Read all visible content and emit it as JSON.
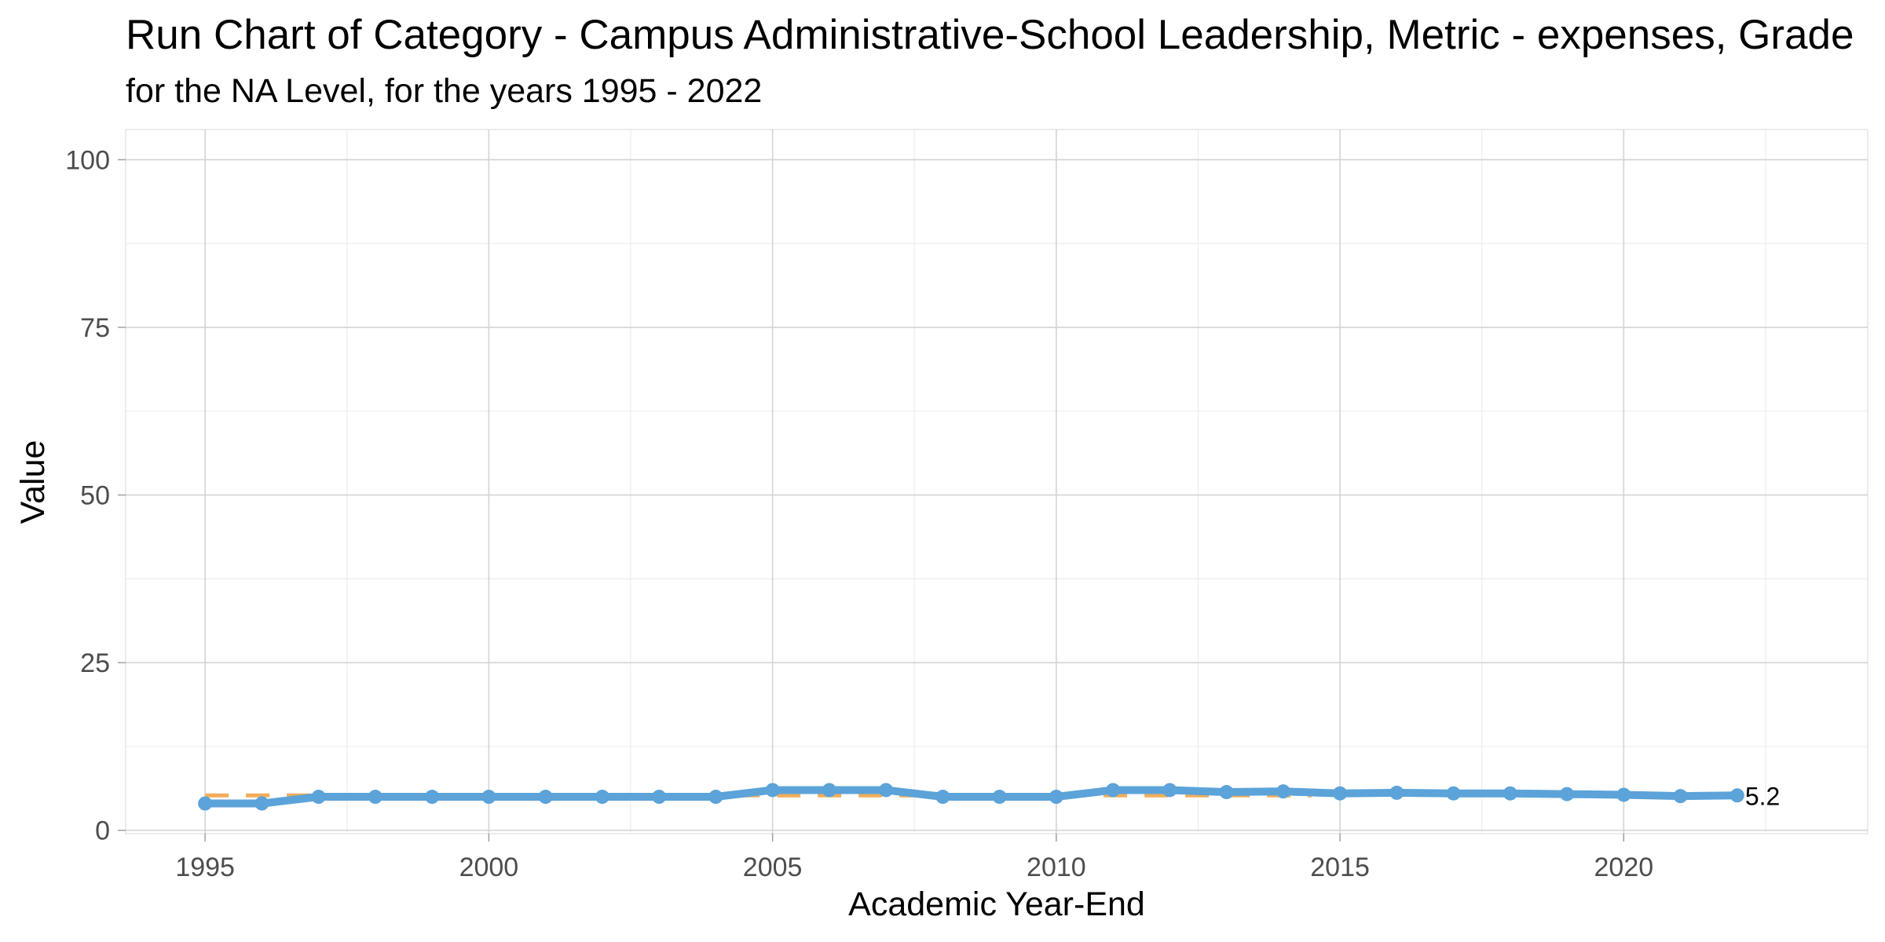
{
  "chart_data": {
    "type": "line",
    "title": "Run Chart of Category -  Campus Administrative-School Leadership, Metric - expenses, Grade",
    "subtitle": "for the NA Level, for the years 1995 - 2022",
    "xlabel": "Academic Year-End",
    "ylabel": "Value",
    "xlim": [
      1993.6,
      2024.3
    ],
    "ylim": [
      -0.5,
      104.5
    ],
    "x_ticks": [
      1995,
      2000,
      2005,
      2010,
      2015,
      2020
    ],
    "y_ticks": [
      0,
      25,
      50,
      75,
      100
    ],
    "grid": true,
    "legend": "none",
    "series": [
      {
        "x": [
          1995,
          1996,
          1997,
          1998,
          1999,
          2000,
          2001,
          2002,
          2003,
          2004,
          2005,
          2006,
          2007,
          2008,
          2009,
          2010,
          2011,
          2012,
          2013,
          2014,
          2015,
          2016,
          2017,
          2018,
          2019,
          2020,
          2021,
          2022
        ],
        "values": [
          4,
          4,
          5,
          5,
          5,
          5,
          5,
          5,
          5,
          5,
          6,
          6,
          6,
          5,
          5,
          5,
          6,
          6,
          5.7,
          5.8,
          5.5,
          5.6,
          5.5,
          5.5,
          5.4,
          5.3,
          5.1,
          5.2
        ],
        "color": "#5ba3d9"
      }
    ],
    "reference_line": {
      "style": "dashed",
      "color": "#f0ad5a",
      "value": 5.2,
      "x_range": [
        1995,
        2014.5
      ]
    },
    "end_label": "5.2"
  }
}
